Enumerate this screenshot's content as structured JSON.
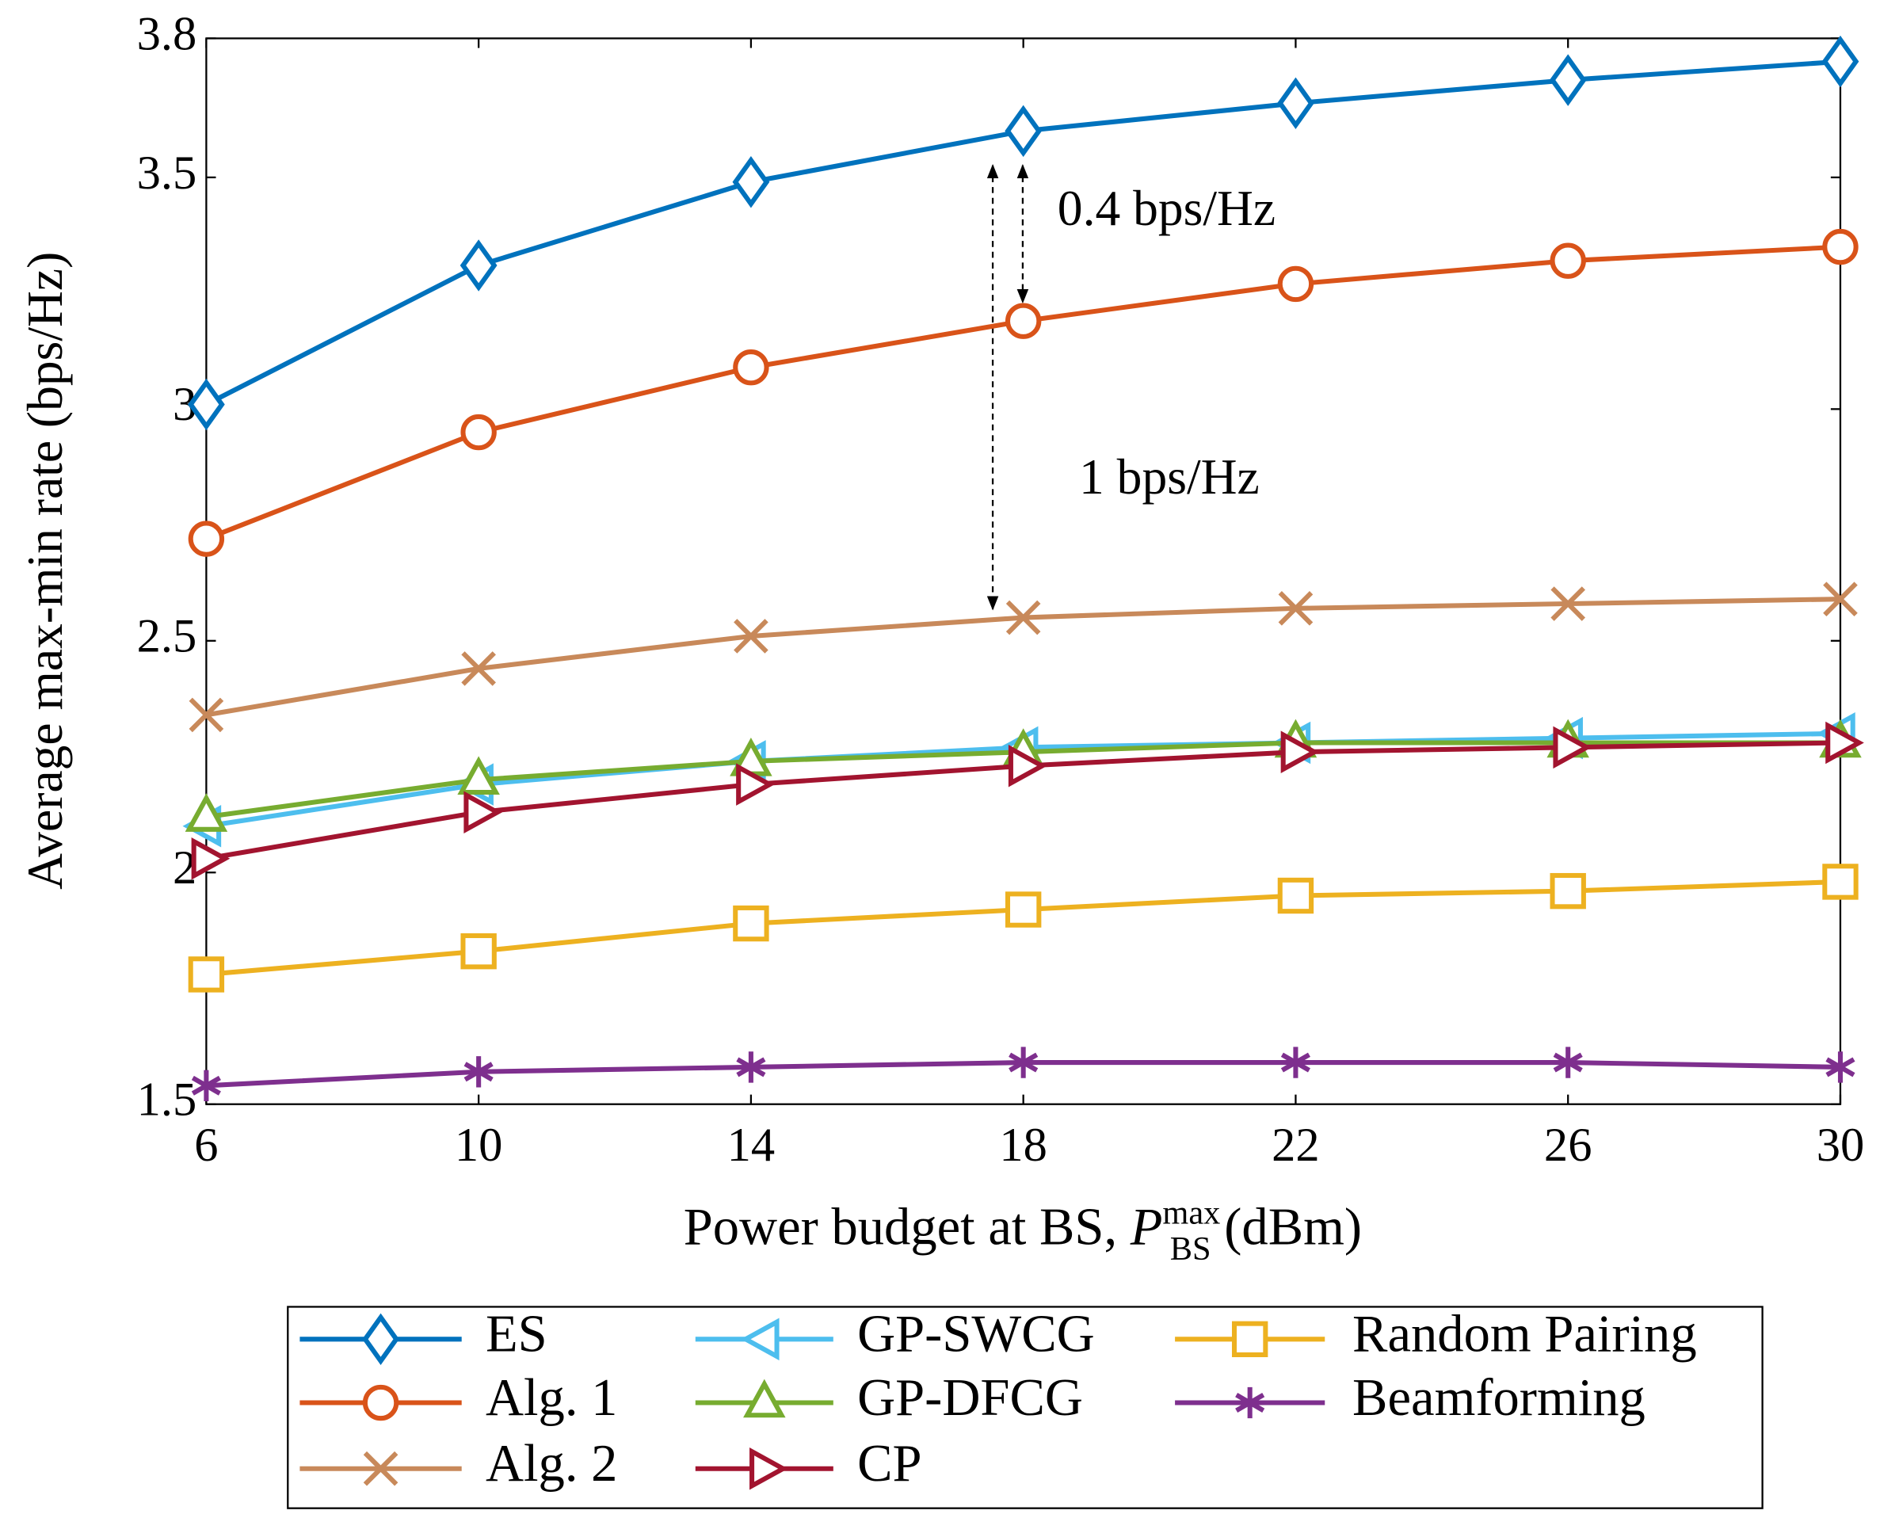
{
  "chart_data": {
    "type": "line",
    "x_label": {
      "prefix": "Power budget at BS, ",
      "symbol": "P",
      "superscript": "max",
      "subscript": "BS",
      "suffix": " (dBm)"
    },
    "y_label": "Average max-min rate (bps/Hz)",
    "x": [
      6,
      10,
      14,
      18,
      22,
      26,
      30
    ],
    "xlim": [
      6,
      30
    ],
    "xticks": [
      6,
      10,
      14,
      18,
      22,
      26,
      30
    ],
    "ylim": [
      1.5,
      3.8
    ],
    "yticks": [
      1.5,
      2,
      2.5,
      3,
      3.5,
      3.8
    ],
    "annotations": [
      "0.4 bps/Hz",
      "1 bps/Hz"
    ],
    "series": [
      {
        "name": "ES",
        "color": "#0072bd",
        "marker": "diamond",
        "values": [
          3.01,
          3.31,
          3.49,
          3.6,
          3.66,
          3.71,
          3.75
        ]
      },
      {
        "name": "Alg. 1",
        "color": "#d95319",
        "marker": "circle",
        "values": [
          2.72,
          2.95,
          3.09,
          3.19,
          3.27,
          3.32,
          3.35
        ]
      },
      {
        "name": "Alg. 2",
        "color": "#c8895a",
        "marker": "x",
        "values": [
          2.34,
          2.44,
          2.51,
          2.55,
          2.57,
          2.58,
          2.59
        ]
      },
      {
        "name": "GP-SWCG",
        "color": "#4dbeee",
        "marker": "triangle-left",
        "values": [
          2.1,
          2.19,
          2.24,
          2.27,
          2.28,
          2.29,
          2.3
        ]
      },
      {
        "name": "GP-DFCG",
        "color": "#77ac30",
        "marker": "triangle-up",
        "values": [
          2.12,
          2.2,
          2.24,
          2.26,
          2.28,
          2.28,
          2.28
        ]
      },
      {
        "name": "CP",
        "color": "#a2142f",
        "marker": "triangle-right",
        "values": [
          2.03,
          2.13,
          2.19,
          2.23,
          2.26,
          2.27,
          2.28
        ]
      },
      {
        "name": "Random Pairing",
        "color": "#edb120",
        "marker": "square",
        "values": [
          1.78,
          1.83,
          1.89,
          1.92,
          1.95,
          1.96,
          1.98
        ]
      },
      {
        "name": "Beamforming",
        "color": "#7e2f8e",
        "marker": "asterisk",
        "values": [
          1.54,
          1.57,
          1.58,
          1.59,
          1.59,
          1.59,
          1.58
        ]
      }
    ]
  }
}
